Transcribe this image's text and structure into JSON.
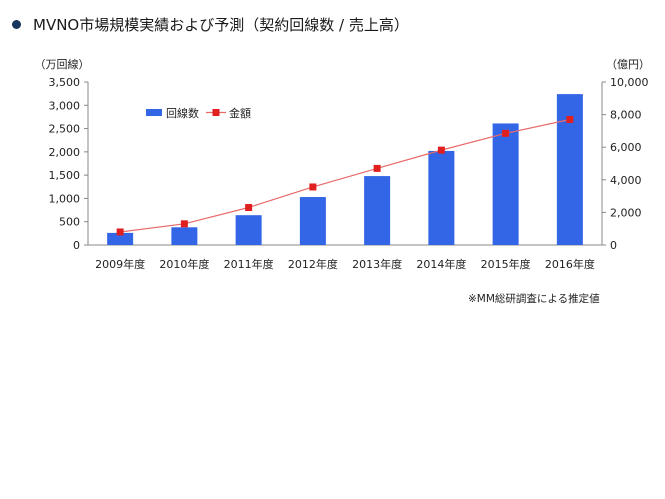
{
  "header": {
    "title": "MVNO市場規模実績および予測（契約回線数 / 売上高）"
  },
  "footnote": "※MM総研調査による推定値",
  "chart_data": {
    "type": "bar+line",
    "title": "MVNO市場規模実績および予測（契約回線数 / 売上高）",
    "categories": [
      "2009年度",
      "2010年度",
      "2011年度",
      "2012年度",
      "2013年度",
      "2014年度",
      "2015年度",
      "2016年度"
    ],
    "y_left": {
      "unit_label": "（万回線）",
      "range": [
        0,
        3500
      ],
      "ticks": [
        0,
        500,
        1000,
        1500,
        2000,
        2500,
        3000,
        3500
      ],
      "tick_labels": [
        "0",
        "500",
        "1,000",
        "1,500",
        "2,000",
        "2,500",
        "3,000",
        "3,500"
      ]
    },
    "y_right": {
      "unit_label": "（億円）",
      "range": [
        0,
        10000
      ],
      "ticks": [
        0,
        2000,
        4000,
        6000,
        8000,
        10000
      ],
      "tick_labels": [
        "0",
        "2,000",
        "4,000",
        "6,000",
        "8,000",
        "10,000"
      ]
    },
    "series": [
      {
        "name": "回線数",
        "kind": "bar",
        "axis": "left",
        "color": "#3366e6",
        "values": [
          260,
          380,
          640,
          1030,
          1480,
          2020,
          2610,
          3240
        ]
      },
      {
        "name": "金額",
        "kind": "line",
        "axis": "right",
        "color": "#e02020",
        "line_color": "#e86a6a",
        "values": [
          800,
          1300,
          2300,
          3560,
          4700,
          5820,
          6850,
          7700
        ]
      }
    ],
    "legend": "top-left",
    "grid": false
  }
}
